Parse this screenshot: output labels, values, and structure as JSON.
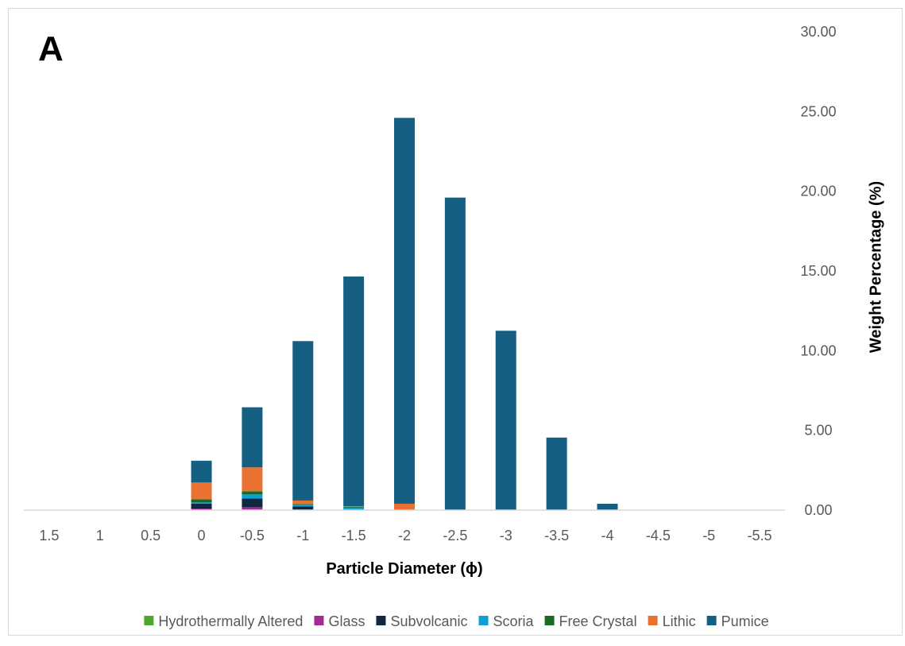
{
  "panel_label": "A",
  "chart_data": {
    "type": "bar",
    "stacked": true,
    "categories": [
      "1.5",
      "1",
      "0.5",
      "0",
      "-0.5",
      "-1",
      "-1.5",
      "-2",
      "-2.5",
      "-3",
      "-3.5",
      "-4",
      "-4.5",
      "-5",
      "-5.5"
    ],
    "xlabel": "Particle Diameter (ϕ)",
    "ylabel": "Weight Percentage (%)",
    "ylim": [
      0,
      30
    ],
    "yticks": [
      "0.00",
      "5.00",
      "10.00",
      "15.00",
      "20.00",
      "25.00",
      "30.00"
    ],
    "ytick_values": [
      0,
      5,
      10,
      15,
      20,
      25,
      30
    ],
    "y_axis_side": "right",
    "grid": false,
    "legend_position": "bottom",
    "series": [
      {
        "name": "Hydrothermally Altered",
        "color": "#4ea72e",
        "values": [
          0,
          0,
          0,
          0.02,
          0.03,
          0,
          0,
          0,
          0,
          0,
          0,
          0,
          0,
          0,
          0
        ]
      },
      {
        "name": "Glass",
        "color": "#a02b93",
        "values": [
          0,
          0,
          0,
          0.08,
          0.15,
          0.03,
          0,
          0,
          0,
          0,
          0,
          0,
          0,
          0,
          0
        ]
      },
      {
        "name": "Subvolcanic",
        "color": "#0e2841",
        "values": [
          0,
          0,
          0,
          0.3,
          0.55,
          0.2,
          0.02,
          0,
          0,
          0,
          0,
          0,
          0,
          0,
          0
        ]
      },
      {
        "name": "Scoria",
        "color": "#0f9ed5",
        "values": [
          0,
          0,
          0,
          0.08,
          0.25,
          0.1,
          0.15,
          0.02,
          0,
          0,
          0,
          0,
          0,
          0,
          0
        ]
      },
      {
        "name": "Free Crystal",
        "color": "#196b24",
        "values": [
          0,
          0,
          0,
          0.2,
          0.2,
          0.05,
          0.03,
          0,
          0,
          0,
          0,
          0,
          0,
          0,
          0
        ]
      },
      {
        "name": "Lithic",
        "color": "#e97132",
        "values": [
          0,
          0,
          0,
          1.05,
          1.5,
          0.22,
          0.05,
          0.38,
          0,
          0,
          0,
          0,
          0,
          0,
          0
        ]
      },
      {
        "name": "Pumice",
        "color": "#156082",
        "values": [
          0,
          0,
          0,
          1.37,
          3.77,
          10.0,
          14.4,
          24.2,
          19.6,
          11.25,
          4.55,
          0.4,
          0,
          0,
          0
        ]
      }
    ]
  }
}
